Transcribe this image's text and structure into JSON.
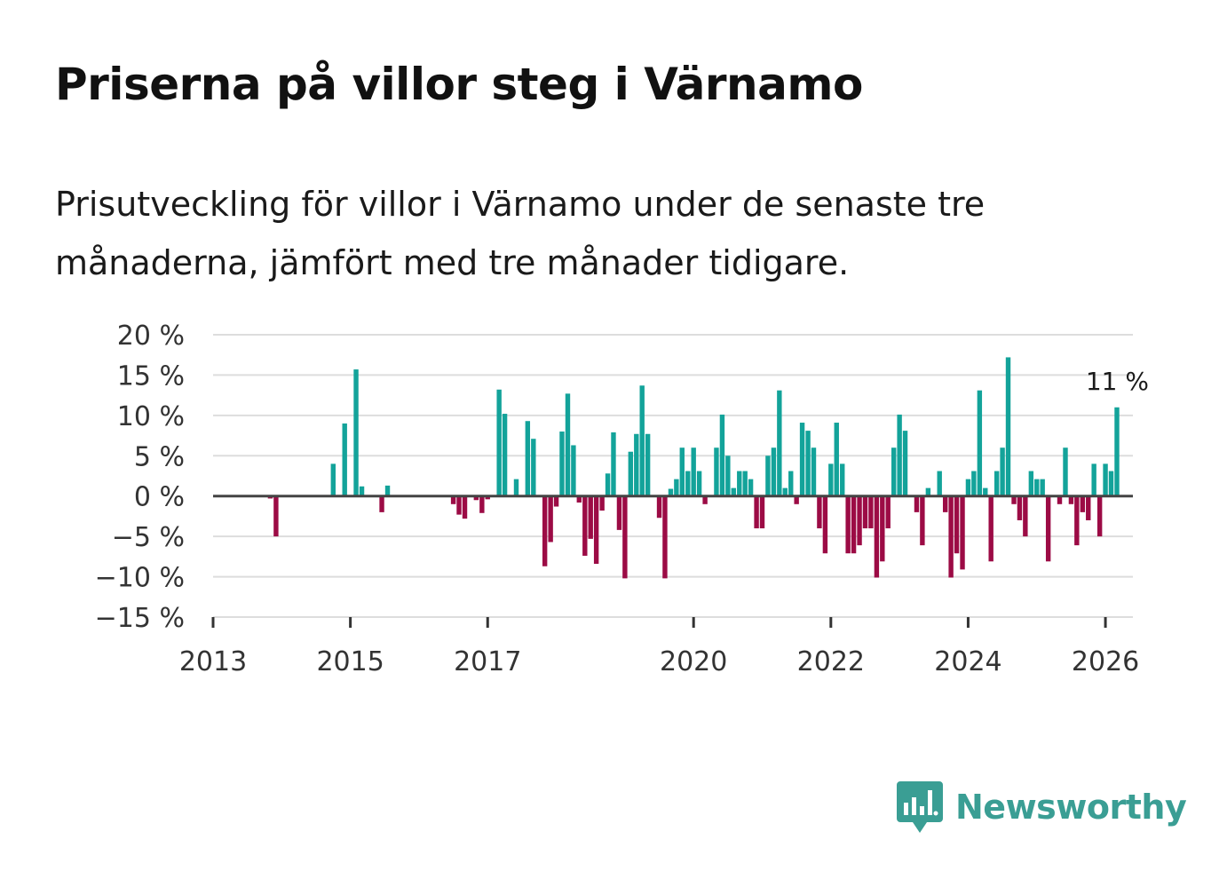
{
  "title": "Priserna på villor steg i Värnamo",
  "subtitle": "Prisutveckling för villor i Värnamo under de senaste tre månaderna, jämfört med tre månader tidigare.",
  "brand": "Newsworthy",
  "colors": {
    "positive": "#13a39a",
    "negative": "#9c0b45",
    "grid": "#dddddd",
    "zero_line": "#444444",
    "brand": "#3a9e94"
  },
  "chart_data": {
    "type": "bar",
    "ylim": [
      -15,
      20
    ],
    "y_ticks": [
      20,
      15,
      10,
      5,
      0,
      -5,
      -10,
      -15
    ],
    "y_tick_labels": [
      "20 %",
      "15 %",
      "10 %",
      "5 %",
      "0 %",
      "−5 %",
      "−10 %",
      "−15 %"
    ],
    "x_ticks": [
      2013,
      2015,
      2017,
      2020,
      2022,
      2024,
      2026
    ],
    "x_tick_labels": [
      "2013",
      "2015",
      "2017",
      "2020",
      "2022",
      "2024",
      "2026"
    ],
    "last_value_label": "11 %",
    "series": [
      {
        "name": "Prisutveckling",
        "values": [
          {
            "x": 2013.833,
            "y": -0.3
          },
          {
            "x": 2013.917,
            "y": -5
          },
          {
            "x": 2014.75,
            "y": 4
          },
          {
            "x": 2014.917,
            "y": 9
          },
          {
            "x": 2015.083,
            "y": 15.7
          },
          {
            "x": 2015.167,
            "y": 1.2
          },
          {
            "x": 2015.458,
            "y": -2
          },
          {
            "x": 2015.542,
            "y": 1.3
          },
          {
            "x": 2016.5,
            "y": -1
          },
          {
            "x": 2016.583,
            "y": -2.3
          },
          {
            "x": 2016.667,
            "y": -2.8
          },
          {
            "x": 2016.833,
            "y": -0.5
          },
          {
            "x": 2016.917,
            "y": -2.1
          },
          {
            "x": 2017.0,
            "y": -0.4
          },
          {
            "x": 2017.167,
            "y": 13.2
          },
          {
            "x": 2017.25,
            "y": 10.2
          },
          {
            "x": 2017.417,
            "y": 2.1
          },
          {
            "x": 2017.583,
            "y": 9.3
          },
          {
            "x": 2017.667,
            "y": 7.1
          },
          {
            "x": 2017.833,
            "y": -8.7
          },
          {
            "x": 2017.917,
            "y": -5.7
          },
          {
            "x": 2018.0,
            "y": -1.3
          },
          {
            "x": 2018.083,
            "y": 8
          },
          {
            "x": 2018.167,
            "y": 12.7
          },
          {
            "x": 2018.25,
            "y": 6.3
          },
          {
            "x": 2018.333,
            "y": -0.8
          },
          {
            "x": 2018.417,
            "y": -7.4
          },
          {
            "x": 2018.5,
            "y": -5.3
          },
          {
            "x": 2018.583,
            "y": -8.4
          },
          {
            "x": 2018.667,
            "y": -1.8
          },
          {
            "x": 2018.75,
            "y": 2.8
          },
          {
            "x": 2018.833,
            "y": 7.9
          },
          {
            "x": 2018.917,
            "y": -4.2
          },
          {
            "x": 2019.0,
            "y": -10.2
          },
          {
            "x": 2019.083,
            "y": 5.5
          },
          {
            "x": 2019.167,
            "y": 7.7
          },
          {
            "x": 2019.25,
            "y": 13.7
          },
          {
            "x": 2019.333,
            "y": 7.7
          },
          {
            "x": 2019.5,
            "y": -2.7
          },
          {
            "x": 2019.583,
            "y": -10.2
          },
          {
            "x": 2019.667,
            "y": 0.9
          },
          {
            "x": 2019.75,
            "y": 2.1
          },
          {
            "x": 2019.833,
            "y": 6
          },
          {
            "x": 2019.917,
            "y": 3.1
          },
          {
            "x": 2020.0,
            "y": 6
          },
          {
            "x": 2020.083,
            "y": 3.1
          },
          {
            "x": 2020.167,
            "y": -1
          },
          {
            "x": 2020.333,
            "y": 6
          },
          {
            "x": 2020.417,
            "y": 10.1
          },
          {
            "x": 2020.5,
            "y": 5
          },
          {
            "x": 2020.583,
            "y": 1
          },
          {
            "x": 2020.667,
            "y": 3.1
          },
          {
            "x": 2020.75,
            "y": 3.1
          },
          {
            "x": 2020.833,
            "y": 2.1
          },
          {
            "x": 2020.917,
            "y": -4
          },
          {
            "x": 2021.0,
            "y": -4
          },
          {
            "x": 2021.083,
            "y": 5
          },
          {
            "x": 2021.167,
            "y": 6
          },
          {
            "x": 2021.25,
            "y": 13.1
          },
          {
            "x": 2021.333,
            "y": 1
          },
          {
            "x": 2021.417,
            "y": 3.1
          },
          {
            "x": 2021.5,
            "y": -1
          },
          {
            "x": 2021.583,
            "y": 9.1
          },
          {
            "x": 2021.667,
            "y": 8.1
          },
          {
            "x": 2021.75,
            "y": 6
          },
          {
            "x": 2021.833,
            "y": -4
          },
          {
            "x": 2021.917,
            "y": -7.1
          },
          {
            "x": 2022.0,
            "y": 4
          },
          {
            "x": 2022.083,
            "y": 9.1
          },
          {
            "x": 2022.167,
            "y": 4
          },
          {
            "x": 2022.25,
            "y": -7.1
          },
          {
            "x": 2022.333,
            "y": -7.1
          },
          {
            "x": 2022.417,
            "y": -6.1
          },
          {
            "x": 2022.5,
            "y": -4
          },
          {
            "x": 2022.583,
            "y": -4
          },
          {
            "x": 2022.667,
            "y": -10.1
          },
          {
            "x": 2022.75,
            "y": -8.1
          },
          {
            "x": 2022.833,
            "y": -4
          },
          {
            "x": 2022.917,
            "y": 6
          },
          {
            "x": 2023.0,
            "y": 10.1
          },
          {
            "x": 2023.083,
            "y": 8.1
          },
          {
            "x": 2023.25,
            "y": -2
          },
          {
            "x": 2023.333,
            "y": -6.1
          },
          {
            "x": 2023.417,
            "y": 1
          },
          {
            "x": 2023.583,
            "y": 3.1
          },
          {
            "x": 2023.667,
            "y": -2
          },
          {
            "x": 2023.75,
            "y": -10.1
          },
          {
            "x": 2023.833,
            "y": -7.1
          },
          {
            "x": 2023.917,
            "y": -9.1
          },
          {
            "x": 2024.0,
            "y": 2.1
          },
          {
            "x": 2024.083,
            "y": 3.1
          },
          {
            "x": 2024.167,
            "y": 13.1
          },
          {
            "x": 2024.25,
            "y": 1
          },
          {
            "x": 2024.333,
            "y": -8.1
          },
          {
            "x": 2024.417,
            "y": 3.1
          },
          {
            "x": 2024.5,
            "y": 6
          },
          {
            "x": 2024.583,
            "y": 17.2
          },
          {
            "x": 2024.667,
            "y": -1
          },
          {
            "x": 2024.75,
            "y": -3
          },
          {
            "x": 2024.833,
            "y": -5
          },
          {
            "x": 2024.917,
            "y": 3.1
          },
          {
            "x": 2025.0,
            "y": 2.1
          },
          {
            "x": 2025.083,
            "y": 2.1
          },
          {
            "x": 2025.167,
            "y": -8.1
          },
          {
            "x": 2025.333,
            "y": -1
          },
          {
            "x": 2025.417,
            "y": 6
          },
          {
            "x": 2025.5,
            "y": -1
          },
          {
            "x": 2025.583,
            "y": -6.1
          },
          {
            "x": 2025.667,
            "y": -2
          },
          {
            "x": 2025.75,
            "y": -3
          },
          {
            "x": 2025.833,
            "y": 4
          },
          {
            "x": 2025.917,
            "y": -5
          },
          {
            "x": 2026.0,
            "y": 4
          },
          {
            "x": 2026.083,
            "y": 3.1
          },
          {
            "x": 2026.167,
            "y": 11
          }
        ]
      }
    ]
  }
}
